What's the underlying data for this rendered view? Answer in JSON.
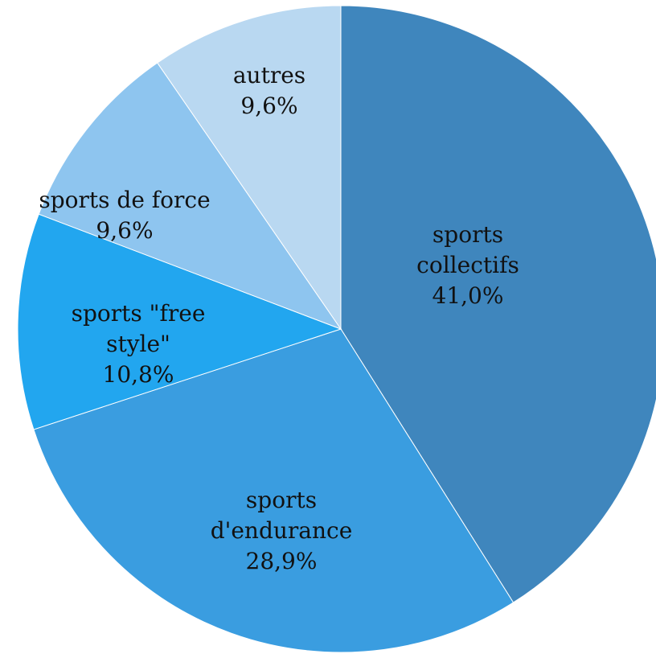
{
  "chart_data": {
    "type": "pie",
    "categories": [
      "sports collectifs",
      "sports d'endurance",
      "sports \"free style\"",
      "sports de force",
      "autres"
    ],
    "values": [
      41.0,
      28.9,
      10.8,
      9.6,
      9.6
    ],
    "value_labels": [
      "41,0%",
      "28,9%",
      "10,8%",
      "9,6%",
      "9,6%"
    ],
    "colors": [
      "#3f86bd",
      "#3a9de0",
      "#22a6ef",
      "#8ec5ef",
      "#b9d8f1"
    ]
  }
}
